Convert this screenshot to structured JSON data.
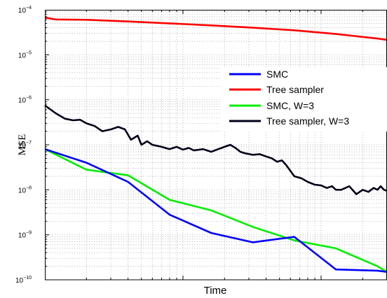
{
  "chart_data": {
    "type": "line",
    "title": "",
    "xlabel": "Time",
    "ylabel": "MSE",
    "x_scale": "log",
    "y_scale": "log",
    "xlim": [
      1,
      300
    ],
    "ylim": [
      1e-10,
      0.0001
    ],
    "grid": true,
    "legend_position": "center-right",
    "y_tick_labels": [
      {
        "base": "10",
        "exp": "−10"
      },
      {
        "base": "10",
        "exp": "−9"
      },
      {
        "base": "10",
        "exp": "−8"
      },
      {
        "base": "10",
        "exp": "−7"
      },
      {
        "base": "10",
        "exp": "−6"
      },
      {
        "base": "10",
        "exp": "−5"
      },
      {
        "base": "10",
        "exp": "−4"
      }
    ],
    "series": [
      {
        "name": "SMC",
        "color": "#0000ff",
        "x": [
          1,
          2,
          4,
          8,
          16,
          32,
          64,
          128,
          256,
          300
        ],
        "y": [
          8e-08,
          4e-08,
          1.5e-08,
          2.8e-09,
          1.1e-09,
          6.8e-10,
          9e-10,
          1.7e-10,
          1.6e-10,
          1.5e-10
        ]
      },
      {
        "name": "Tree sampler",
        "color": "#ff0000",
        "x": [
          1,
          1.2,
          2,
          4,
          8,
          16,
          32,
          64,
          128,
          256,
          300
        ],
        "y": [
          6.7e-05,
          6.1e-05,
          6e-05,
          5.5e-05,
          5e-05,
          4.5e-05,
          4e-05,
          3.5e-05,
          2.9e-05,
          2.3e-05,
          2.15e-05
        ]
      },
      {
        "name": "SMC, W=3",
        "color": "#00ee00",
        "x": [
          1,
          2,
          4,
          8,
          16,
          32,
          64,
          128,
          256,
          300
        ],
        "y": [
          8e-08,
          2.8e-08,
          2.1e-08,
          6e-09,
          3.5e-09,
          1.5e-09,
          7.5e-10,
          5e-10,
          2e-10,
          1.5e-10
        ]
      },
      {
        "name": "Tree sampler, W=3",
        "color": "#00001a",
        "x": [
          1,
          1.2,
          1.4,
          1.6,
          1.8,
          2,
          2.3,
          2.6,
          3,
          3.4,
          3.8,
          4.2,
          4.7,
          5,
          5.5,
          6,
          7,
          8,
          9,
          10,
          11,
          12,
          14,
          16,
          18,
          20,
          22,
          24,
          26,
          28,
          32,
          36,
          40,
          44,
          48,
          52,
          56,
          64,
          72,
          80,
          90,
          100,
          110,
          120,
          128,
          140,
          160,
          180,
          200,
          220,
          240,
          256,
          270,
          285,
          300
        ],
        "y": [
          7.5e-07,
          5e-07,
          3.8e-07,
          3.5e-07,
          3.6e-07,
          3e-07,
          2.6e-07,
          2e-07,
          2.2e-07,
          2.5e-07,
          2.2e-07,
          1.3e-07,
          1.6e-07,
          1e-07,
          1.2e-07,
          1e-07,
          9e-08,
          8e-08,
          9e-08,
          7.8e-08,
          8.5e-08,
          7.5e-08,
          8e-08,
          7e-08,
          8e-08,
          9e-08,
          1e-07,
          8.5e-08,
          7e-08,
          6.5e-08,
          6e-08,
          6.2e-08,
          5.5e-08,
          5e-08,
          4.2e-08,
          4.5e-08,
          3.5e-08,
          2e-08,
          1.8e-08,
          1.5e-08,
          1.3e-08,
          1.25e-08,
          1.1e-08,
          1.2e-08,
          1e-08,
          1e-08,
          1.2e-08,
          8e-09,
          1e-08,
          9e-09,
          1.1e-08,
          1e-08,
          1.2e-08,
          1e-08,
          9.5e-09
        ]
      }
    ]
  }
}
